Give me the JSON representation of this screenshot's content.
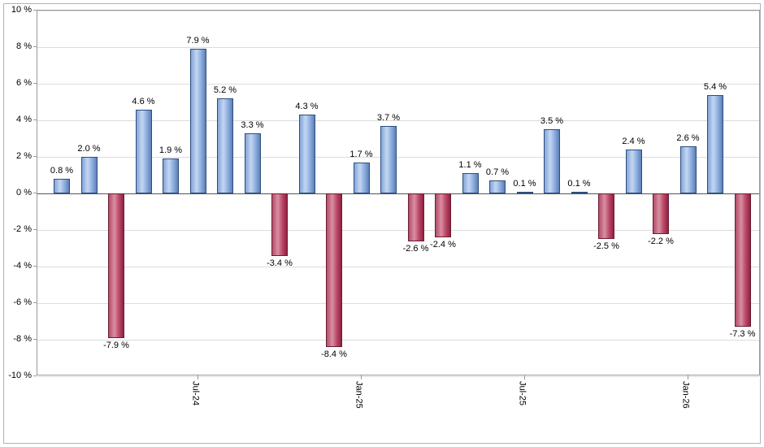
{
  "chart_data": {
    "type": "bar",
    "title": "",
    "xlabel": "",
    "ylabel": "",
    "ylim": [
      -10,
      10
    ],
    "ytick_step": 2,
    "grid": true,
    "legend": false,
    "ytick_labels": [
      "10 %",
      "8 %",
      "6 %",
      "4 %",
      "2 %",
      "0 %",
      "-2 %",
      "-4 %",
      "-6 %",
      "-8 %",
      "-10 %"
    ],
    "values": [
      0.8,
      2.0,
      -7.9,
      4.6,
      1.9,
      7.9,
      5.2,
      3.3,
      -3.4,
      4.3,
      -8.4,
      1.7,
      3.7,
      -2.6,
      -2.4,
      1.1,
      0.7,
      0.1,
      3.5,
      0.1,
      -2.5,
      2.4,
      -2.2,
      2.6,
      5.4,
      -7.3
    ],
    "bar_labels": [
      "0.8 %",
      "2.0 %",
      "-7.9 %",
      "4.6 %",
      "1.9 %",
      "7.9 %",
      "5.2 %",
      "3.3 %",
      "-3.4 %",
      "4.3 %",
      "-8.4 %",
      "1.7 %",
      "3.7 %",
      "-2.6 %",
      "-2.4 %",
      "1.1 %",
      "0.7 %",
      "0.1 %",
      "3.5 %",
      "0.1 %",
      "-2.5 %",
      "2.4 %",
      "-2.2 %",
      "2.6 %",
      "5.4 %",
      "-7.3 %"
    ],
    "x_ticks": [
      {
        "label": "Jul-24",
        "bar_index": 5
      },
      {
        "label": "Jan-25",
        "bar_index": 11
      },
      {
        "label": "Jul-25",
        "bar_index": 17
      },
      {
        "label": "Jan-26",
        "bar_index": 23
      }
    ],
    "colors": {
      "positive_fill": "#8FAFDF",
      "positive_border": "#2C4E7E",
      "negative_fill": "#BC4A68",
      "negative_border": "#6D1B33",
      "gridline": "#DCDCDC",
      "zero_line": "#555555",
      "label_text": "#000000"
    }
  }
}
